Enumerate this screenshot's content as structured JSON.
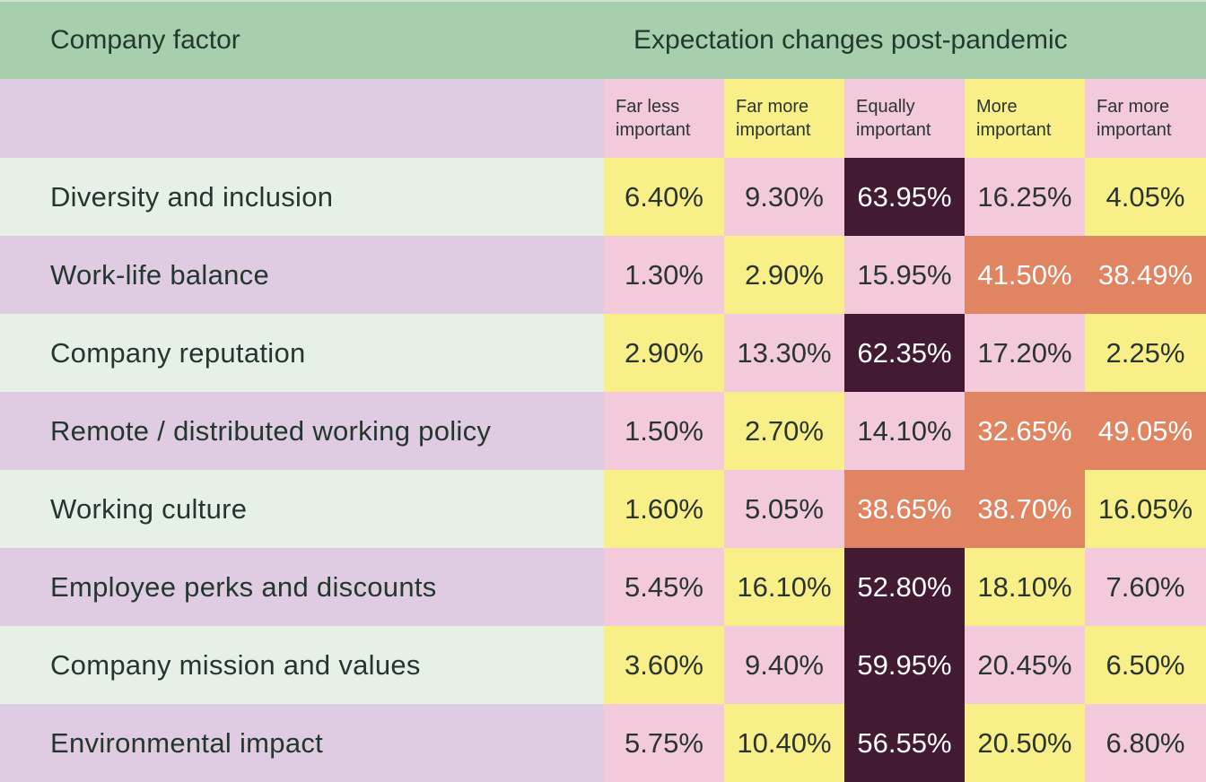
{
  "header": {
    "factor_label": "Company factor",
    "expectation_label": "Expectation changes post-pandemic"
  },
  "colors": {
    "header_green": "#a8cfad",
    "row_light_green": "#e6f0e6",
    "row_lavender": "#dfcbe2",
    "yellow": "#f8ef88",
    "pink": "#f2cadc",
    "dark_plum": "#421b33",
    "orange": "#e08462"
  },
  "chart_data": {
    "type": "table",
    "title": "",
    "columns": [
      {
        "line1": "Far less",
        "line2": "important",
        "color": "pink"
      },
      {
        "line1": "Far more",
        "line2": "important",
        "color": "yellow"
      },
      {
        "line1": "Equally",
        "line2": "important",
        "color": "pink"
      },
      {
        "line1": "More",
        "line2": "important",
        "color": "yellow"
      },
      {
        "line1": "Far more",
        "line2": "important",
        "color": "pink"
      }
    ],
    "rows": [
      {
        "factor": "Diversity and inclusion",
        "values": [
          "6.40%",
          "9.30%",
          "63.95%",
          "16.25%",
          "4.05%"
        ],
        "colors": [
          "yellow",
          "pink",
          "dark",
          "pink",
          "yellow"
        ]
      },
      {
        "factor": "Work-life balance",
        "values": [
          "1.30%",
          "2.90%",
          "15.95%",
          "41.50%",
          "38.49%"
        ],
        "colors": [
          "pink",
          "yellow",
          "pink",
          "orange",
          "orange"
        ]
      },
      {
        "factor": "Company reputation",
        "values": [
          "2.90%",
          "13.30%",
          "62.35%",
          "17.20%",
          "2.25%"
        ],
        "colors": [
          "yellow",
          "pink",
          "dark",
          "pink",
          "yellow"
        ]
      },
      {
        "factor": "Remote / distributed working policy",
        "values": [
          "1.50%",
          "2.70%",
          "14.10%",
          "32.65%",
          "49.05%"
        ],
        "colors": [
          "pink",
          "yellow",
          "pink",
          "orange",
          "orange"
        ]
      },
      {
        "factor": "Working culture",
        "values": [
          "1.60%",
          "5.05%",
          "38.65%",
          "38.70%",
          "16.05%"
        ],
        "colors": [
          "yellow",
          "pink",
          "orange",
          "orange",
          "yellow"
        ]
      },
      {
        "factor": "Employee perks and discounts",
        "values": [
          "5.45%",
          "16.10%",
          "52.80%",
          "18.10%",
          "7.60%"
        ],
        "colors": [
          "pink",
          "yellow",
          "dark",
          "yellow",
          "pink"
        ]
      },
      {
        "factor": "Company mission and values",
        "values": [
          "3.60%",
          "9.40%",
          "59.95%",
          "20.45%",
          "6.50%"
        ],
        "colors": [
          "yellow",
          "pink",
          "dark",
          "pink",
          "yellow"
        ]
      },
      {
        "factor": "Environmental impact",
        "values": [
          "5.75%",
          "10.40%",
          "56.55%",
          "20.50%",
          "6.80%"
        ],
        "colors": [
          "pink",
          "yellow",
          "dark",
          "yellow",
          "pink"
        ]
      }
    ]
  }
}
